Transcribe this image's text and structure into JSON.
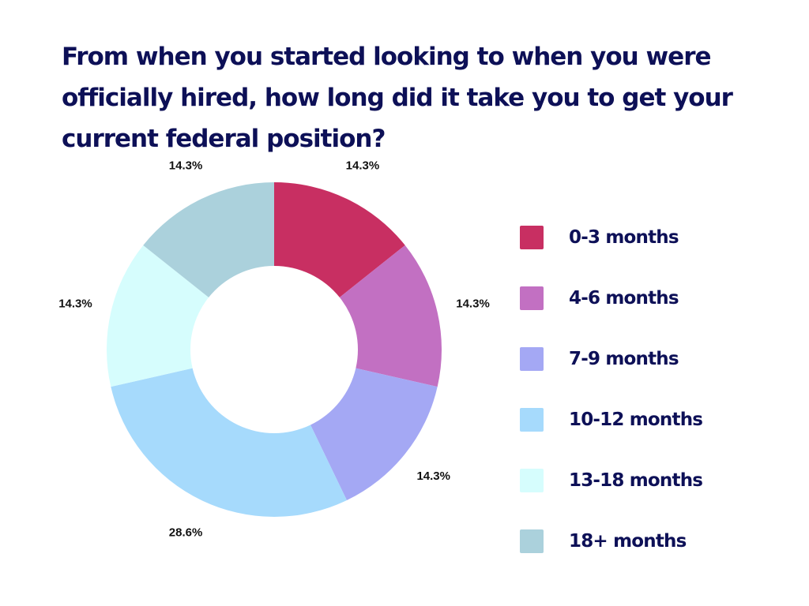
{
  "title": "From when you started looking to when you were officially hired, how long did it take you to get your current federal position?",
  "chart_data": {
    "type": "pie",
    "donut": true,
    "categories": [
      "0-3 months",
      "4-6 months",
      "7-9 months",
      "10-12 months",
      "13-18 months",
      "18+ months"
    ],
    "values": [
      14.3,
      14.3,
      14.3,
      28.6,
      14.3,
      14.3
    ],
    "data_labels": [
      "14.3%",
      "14.3%",
      "14.3%",
      "28.6%",
      "14.3%",
      "14.3%"
    ],
    "colors": [
      "#c82f62",
      "#c270c2",
      "#a4a8f4",
      "#a6dafc",
      "#d6fdfd",
      "#abd1dc"
    ],
    "legend_position": "right"
  }
}
